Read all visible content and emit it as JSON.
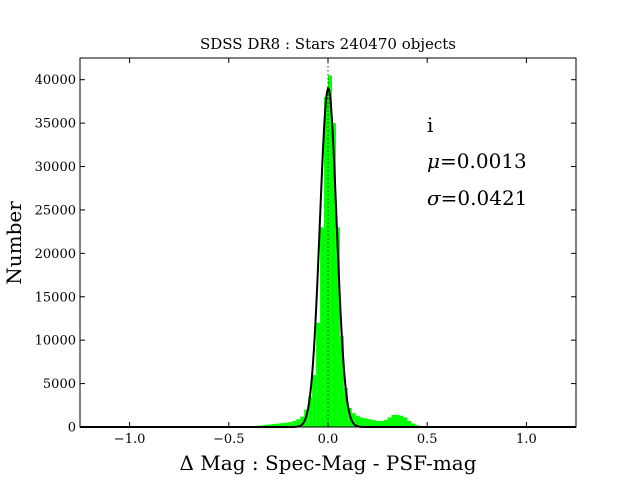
{
  "chart_data": {
    "type": "bar",
    "title": "SDSS DR8 : Stars 240470 objects",
    "xlabel": "Δ Mag : Spec-Mag - PSF-mag",
    "ylabel": "Number",
    "xlim": [
      -1.25,
      1.25
    ],
    "ylim": [
      0,
      42500
    ],
    "x_ticks": [
      -1.0,
      -0.5,
      0.0,
      0.5,
      1.0
    ],
    "x_tick_labels": [
      "−1.0",
      "−0.5",
      "0.0",
      "0.5",
      "1.0"
    ],
    "y_ticks": [
      0,
      5000,
      10000,
      15000,
      20000,
      25000,
      30000,
      35000,
      40000
    ],
    "y_tick_labels": [
      "0",
      "5000",
      "10000",
      "15000",
      "20000",
      "25000",
      "30000",
      "35000",
      "40000"
    ],
    "bin_width": 0.02,
    "histogram": {
      "name": "",
      "color": "#00ff00",
      "bin_centers": [
        -0.37,
        -0.35,
        -0.33,
        -0.31,
        -0.29,
        -0.27,
        -0.25,
        -0.23,
        -0.21,
        -0.19,
        -0.17,
        -0.15,
        -0.13,
        -0.11,
        -0.09,
        -0.07,
        -0.05,
        -0.03,
        -0.01,
        0.01,
        0.03,
        0.05,
        0.07,
        0.09,
        0.11,
        0.13,
        0.15,
        0.17,
        0.19,
        0.21,
        0.23,
        0.25,
        0.27,
        0.29,
        0.31,
        0.33,
        0.35,
        0.37,
        0.39,
        0.41,
        0.43,
        0.45,
        0.47
      ],
      "values": [
        100,
        150,
        200,
        250,
        300,
        350,
        400,
        450,
        500,
        550,
        700,
        900,
        1200,
        2000,
        3500,
        6000,
        12000,
        23000,
        38000,
        40500,
        35000,
        23000,
        10500,
        4500,
        2200,
        1600,
        1300,
        1100,
        1000,
        900,
        800,
        700,
        700,
        800,
        1100,
        1400,
        1400,
        1300,
        1100,
        700,
        400,
        200,
        100
      ]
    },
    "fit": {
      "name": "",
      "type": "gaussian",
      "mu": 0.0013,
      "sigma": 0.0421,
      "amplitude": 39000,
      "color": "#000000"
    },
    "reference_line": {
      "x": 0.0,
      "style": "dotted"
    },
    "annotations": [
      {
        "id": "band",
        "text": "i"
      },
      {
        "id": "mu",
        "symbol": "μ",
        "text": "=0.0013"
      },
      {
        "id": "sigma",
        "symbol": "σ",
        "text": "=0.0421"
      }
    ],
    "grid": false,
    "legend": "none"
  },
  "colors": {
    "bars": "#00ff00",
    "fit_line": "#000000",
    "axes": "#000000",
    "background": "#ffffff"
  }
}
